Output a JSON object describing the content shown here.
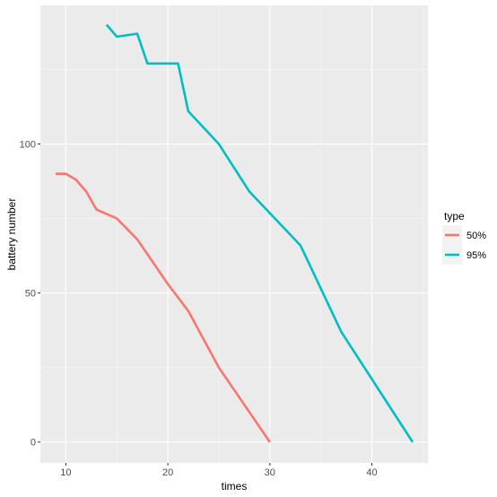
{
  "chart_data": {
    "type": "line",
    "xlabel": "times",
    "ylabel": "battery number",
    "xlim": [
      7.5,
      45.5
    ],
    "ylim": [
      -7,
      146.5
    ],
    "x_ticks": [
      10,
      20,
      30,
      40
    ],
    "x_tick_labels": [
      "10",
      "20",
      "30",
      "40"
    ],
    "y_ticks": [
      0,
      50,
      100
    ],
    "y_tick_labels": [
      "0",
      "50",
      "100"
    ],
    "grid": true,
    "legend": {
      "title": "type",
      "position": "right"
    },
    "series": [
      {
        "name": "50%",
        "color": "#F8766D",
        "points": [
          {
            "x": 9,
            "y": 90
          },
          {
            "x": 10,
            "y": 90
          },
          {
            "x": 11,
            "y": 88
          },
          {
            "x": 12,
            "y": 84
          },
          {
            "x": 13,
            "y": 78
          },
          {
            "x": 15,
            "y": 75
          },
          {
            "x": 17,
            "y": 68
          },
          {
            "x": 20,
            "y": 53
          },
          {
            "x": 22,
            "y": 44
          },
          {
            "x": 25,
            "y": 25
          },
          {
            "x": 30,
            "y": 0
          }
        ]
      },
      {
        "name": "95%",
        "color": "#00BFC4",
        "points": [
          {
            "x": 14,
            "y": 140
          },
          {
            "x": 15,
            "y": 136
          },
          {
            "x": 17,
            "y": 137
          },
          {
            "x": 18,
            "y": 127
          },
          {
            "x": 21,
            "y": 127
          },
          {
            "x": 22,
            "y": 111
          },
          {
            "x": 25,
            "y": 100
          },
          {
            "x": 28,
            "y": 84
          },
          {
            "x": 33,
            "y": 66
          },
          {
            "x": 37,
            "y": 37
          },
          {
            "x": 44,
            "y": 0
          }
        ]
      }
    ]
  },
  "colors": {
    "panel_background": "#EBEBEB",
    "grid_major": "#FFFFFF",
    "tick_color": "#333333"
  }
}
